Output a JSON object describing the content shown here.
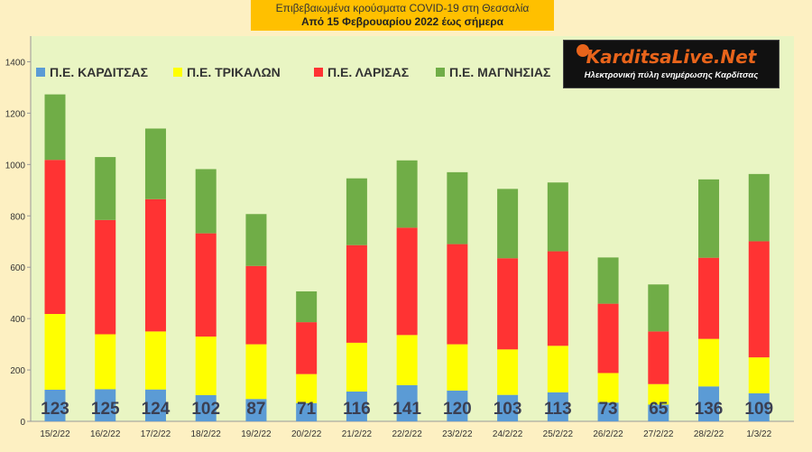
{
  "chart_data": {
    "type": "bar",
    "stacked": true,
    "title": "Επιβεβαιωμένα κρούσματα COVID-19 στη Θεσσαλία",
    "subtitle": "Από 15 Φεβρουαρίου 2022 έως σήμερα",
    "xlabel": "",
    "ylabel": "",
    "ylim": [
      0,
      1500
    ],
    "yticks": [
      0,
      200,
      400,
      600,
      800,
      1000,
      1200,
      1400
    ],
    "grid": false,
    "legend_position": "top",
    "categories": [
      "15/2/22",
      "16/2/22",
      "17/2/22",
      "18/2/22",
      "19/2/22",
      "20/2/22",
      "21/2/22",
      "22/2/22",
      "23/2/22",
      "24/2/22",
      "25/2/22",
      "26/2/22",
      "27/2/22",
      "28/2/22",
      "1/3/22"
    ],
    "series": [
      {
        "name": "Π.Ε. ΚΑΡΔΙΤΣΑΣ",
        "color": "#5b9bd5",
        "values": [
          123,
          125,
          124,
          102,
          87,
          71,
          116,
          141,
          120,
          103,
          113,
          73,
          65,
          136,
          109
        ]
      },
      {
        "name": "Π.Ε. ΤΡΙΚΑΛΩΝ",
        "color": "#ffff00",
        "values": [
          295,
          214,
          226,
          228,
          213,
          113,
          190,
          195,
          180,
          177,
          181,
          115,
          80,
          185,
          140
        ]
      },
      {
        "name": "Π.Ε. ΛΑΡΙΣΑΣ",
        "color": "#ff3333",
        "values": [
          600,
          445,
          515,
          402,
          305,
          202,
          380,
          418,
          390,
          355,
          368,
          270,
          205,
          316,
          452
        ]
      },
      {
        "name": "Π.Ε. ΜΑΓΝΗΣΙΑΣ",
        "color": "#70ad47",
        "values": [
          255,
          245,
          275,
          250,
          202,
          120,
          260,
          262,
          280,
          270,
          268,
          180,
          183,
          305,
          262
        ]
      }
    ],
    "data_labels_series": "Π.Ε. ΚΑΡΔΙΤΣΑΣ"
  },
  "logo": {
    "name": "KarditsaLive.Net",
    "tagline": "Ηλεκτρονική πύλη ενημέρωσης Καρδίτσας"
  },
  "colors": {
    "plot_background": "#e9f5c3",
    "page_background": "#fdf0c2",
    "title_background": "#ffc000"
  }
}
